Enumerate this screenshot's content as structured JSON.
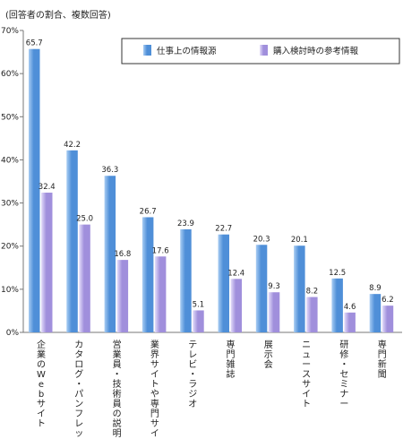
{
  "note": "(回答者の割合、複数回答)",
  "chart_data": {
    "type": "bar",
    "categories": [
      "企業のWebサイト",
      "カタログ・パンフレット",
      "営業員・技術員の説明",
      "業界サイトや専門サイト",
      "テレビ・ラジオ",
      "専門雑誌",
      "展示会",
      "ニュースサイト",
      "研修・セミナー",
      "専門新聞"
    ],
    "series": [
      {
        "name": "仕事上の情報源",
        "values": [
          65.7,
          42.2,
          36.3,
          26.7,
          23.9,
          22.7,
          20.3,
          20.1,
          12.5,
          8.9
        ]
      },
      {
        "name": "購入検討時の参考情報",
        "values": [
          32.4,
          25.0,
          16.8,
          17.6,
          5.1,
          12.4,
          9.3,
          8.2,
          4.6,
          6.2
        ]
      }
    ],
    "value_labels": [
      [
        "65.7",
        "42.2",
        "36.3",
        "26.7",
        "23.9",
        "22.7",
        "20.3",
        "20.1",
        "12.5",
        "8.9"
      ],
      [
        "32.4",
        "25.0",
        "16.8",
        "17.6",
        "5.1",
        "12.4",
        "9.3",
        "8.2",
        "4.6",
        "6.2"
      ]
    ],
    "yticks": [
      0,
      10,
      20,
      30,
      40,
      50,
      60,
      70
    ],
    "ytick_labels": [
      "0%",
      "10%",
      "20%",
      "30%",
      "40%",
      "50%",
      "60%",
      "70%"
    ],
    "ylim": [
      0,
      70
    ],
    "grid": false,
    "legend_position": "top-right",
    "colors": {
      "series1": "#4f8fd8",
      "series1_light": "#a9cdf3",
      "series2": "#a08fdc",
      "series2_light": "#e4defa",
      "axis": "#777777"
    }
  }
}
